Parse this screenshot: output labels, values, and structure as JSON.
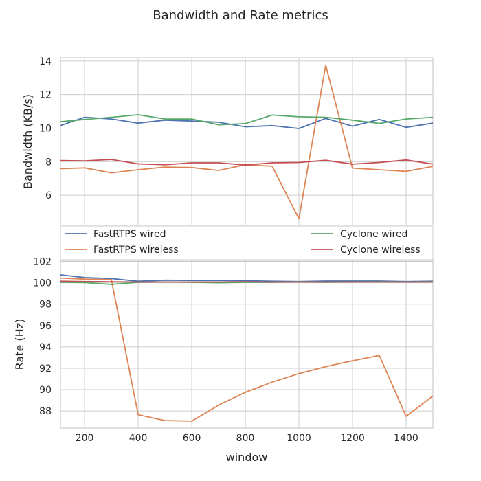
{
  "figure_title": "Bandwidth and Rate metrics",
  "colors": {
    "background": "#ffffff",
    "grid": "#cccccc",
    "frame": "#cccccc",
    "text": "#262626",
    "legend_border": "#cccccc"
  },
  "chart_data": [
    {
      "type": "line",
      "title": "",
      "xlabel": "",
      "ylabel": "Bandwidth (KB/s)",
      "xlim": [
        110,
        1500
      ],
      "ylim": [
        4.2,
        14.2
      ],
      "x": [
        110,
        200,
        300,
        400,
        500,
        600,
        700,
        800,
        900,
        1000,
        1100,
        1200,
        1300,
        1400,
        1500
      ],
      "xticks": [
        200,
        400,
        600,
        800,
        1000,
        1200,
        1400
      ],
      "xtick_labels": [
        "",
        "",
        "",
        "",
        "",
        "",
        ""
      ],
      "yticks": [
        6,
        8,
        10,
        12,
        14
      ],
      "ytick_labels": [
        "6",
        "8",
        "10",
        "12",
        "14"
      ],
      "grid": true,
      "legend": {
        "placement": "below-plot",
        "entries": [
          "FastRTPS wired",
          "FastRTPS wireless",
          "Cyclone wired",
          "Cyclone wireless"
        ]
      },
      "series": [
        {
          "name": "FastRTPS wired",
          "color": "#4c72b0",
          "values": [
            10.15,
            10.65,
            10.55,
            10.3,
            10.48,
            10.42,
            10.35,
            10.08,
            10.15,
            9.98,
            10.58,
            10.12,
            10.52,
            10.05,
            10.3
          ]
        },
        {
          "name": "FastRTPS wireless",
          "color": "#dd8452",
          "values": [
            7.58,
            7.63,
            7.33,
            7.52,
            7.68,
            7.65,
            7.48,
            7.82,
            7.73,
            4.6,
            13.75,
            7.62,
            7.52,
            7.42,
            7.72
          ]
        },
        {
          "name": "Cyclone wired",
          "color": "#55a868",
          "values": [
            10.38,
            10.52,
            10.65,
            10.8,
            10.55,
            10.55,
            10.2,
            10.27,
            10.78,
            10.68,
            10.65,
            10.48,
            10.28,
            10.55,
            10.65
          ]
        },
        {
          "name": "Cyclone wireless",
          "color": "#c44e52",
          "values": [
            8.07,
            8.05,
            8.13,
            7.87,
            7.82,
            7.93,
            7.93,
            7.8,
            7.93,
            7.95,
            8.08,
            7.85,
            7.95,
            8.1,
            7.85
          ]
        }
      ]
    },
    {
      "type": "line",
      "title": "",
      "xlabel": "window",
      "ylabel": "Rate (Hz)",
      "xlim": [
        110,
        1500
      ],
      "ylim": [
        86.4,
        102.1
      ],
      "x": [
        110,
        200,
        300,
        400,
        500,
        600,
        700,
        800,
        900,
        1000,
        1100,
        1200,
        1300,
        1400,
        1500
      ],
      "xticks": [
        200,
        400,
        600,
        800,
        1000,
        1200,
        1400
      ],
      "xtick_labels": [
        "200",
        "400",
        "600",
        "800",
        "1000",
        "1200",
        "1400"
      ],
      "yticks": [
        88,
        90,
        92,
        94,
        96,
        98,
        100,
        102
      ],
      "ytick_labels": [
        "88",
        "90",
        "92",
        "94",
        "96",
        "98",
        "100",
        "102"
      ],
      "grid": true,
      "series": [
        {
          "name": "FastRTPS wired",
          "color": "#4c72b0",
          "values": [
            100.75,
            100.5,
            100.4,
            100.15,
            100.25,
            100.22,
            100.22,
            100.2,
            100.15,
            100.12,
            100.17,
            100.17,
            100.17,
            100.12,
            100.15
          ]
        },
        {
          "name": "FastRTPS wireless",
          "color": "#dd8452",
          "values": [
            100.45,
            100.35,
            100.3,
            87.65,
            87.1,
            87.05,
            88.55,
            89.75,
            90.7,
            91.5,
            92.15,
            92.7,
            93.2,
            87.5,
            89.4
          ]
        },
        {
          "name": "Cyclone wired",
          "color": "#55a868",
          "values": [
            100.05,
            100.02,
            99.85,
            100.05,
            100.08,
            100.05,
            100.0,
            100.05,
            100.05,
            100.1,
            100.05,
            100.08,
            100.1,
            100.08,
            100.1
          ]
        },
        {
          "name": "Cyclone wireless",
          "color": "#c44e52",
          "values": [
            100.15,
            100.12,
            100.1,
            100.07,
            100.07,
            100.07,
            100.07,
            100.1,
            100.07,
            100.07,
            100.07,
            100.07,
            100.07,
            100.07,
            100.07
          ]
        }
      ]
    }
  ]
}
